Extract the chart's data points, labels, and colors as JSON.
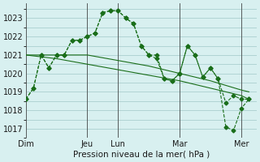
{
  "title": "",
  "xlabel": "Pression niveau de la mer( hPa )",
  "ylabel": "",
  "bg_color": "#d8f0f0",
  "grid_color": "#a0c8c8",
  "line_color": "#1a6e1a",
  "marker_color": "#1a6e1a",
  "ylim": [
    1016.5,
    1023.8
  ],
  "day_labels": [
    "Dim",
    "Jeu",
    "Lun",
    "Mar",
    "Mer"
  ],
  "day_positions": [
    0,
    48,
    72,
    120,
    168
  ],
  "series": [
    {
      "x": [
        0,
        6,
        12,
        18,
        24,
        30,
        36,
        42,
        48,
        54,
        60,
        66,
        72,
        78,
        84,
        90,
        96,
        102,
        108,
        114,
        120,
        126,
        132,
        138,
        144,
        150,
        156,
        162,
        168,
        174
      ],
      "y": [
        1018.6,
        1019.2,
        1021.0,
        1020.3,
        1021.0,
        1021.0,
        1021.8,
        1021.8,
        1022.0,
        1022.2,
        1023.3,
        1023.4,
        1023.4,
        1023.0,
        1022.7,
        1021.5,
        1021.0,
        1020.8,
        1019.7,
        1019.6,
        1020.0,
        1021.5,
        1021.0,
        1019.8,
        1020.3,
        1019.7,
        1018.4,
        1018.8,
        1018.6,
        1018.6
      ]
    },
    {
      "x": [
        0,
        24,
        48,
        72,
        96,
        120,
        144,
        168,
        174
      ],
      "y": [
        1021.0,
        1021.0,
        1021.0,
        1020.7,
        1020.4,
        1020.0,
        1019.6,
        1019.1,
        1019.0
      ]
    },
    {
      "x": [
        0,
        24,
        48,
        72,
        96,
        120,
        144,
        168,
        174
      ],
      "y": [
        1021.0,
        1020.8,
        1020.5,
        1020.2,
        1019.9,
        1019.6,
        1019.2,
        1018.8,
        1018.6
      ]
    },
    {
      "x": [
        0,
        6,
        12,
        18,
        24,
        30,
        36,
        42,
        48,
        54,
        60,
        66,
        72,
        78,
        84,
        90,
        96,
        102,
        108,
        114,
        120,
        126,
        132,
        138,
        144,
        150,
        156,
        162,
        168,
        174
      ],
      "y": [
        1018.6,
        1019.2,
        1021.0,
        1020.3,
        1021.0,
        1021.0,
        1021.8,
        1021.8,
        1022.0,
        1022.2,
        1023.3,
        1023.4,
        1023.4,
        1023.0,
        1022.7,
        1021.5,
        1021.0,
        1021.0,
        1019.7,
        1019.6,
        1020.0,
        1021.5,
        1021.0,
        1019.8,
        1020.3,
        1019.7,
        1017.1,
        1016.9,
        1018.1,
        1018.6
      ]
    }
  ],
  "yticks": [
    1017,
    1018,
    1019,
    1020,
    1021,
    1022,
    1023
  ]
}
